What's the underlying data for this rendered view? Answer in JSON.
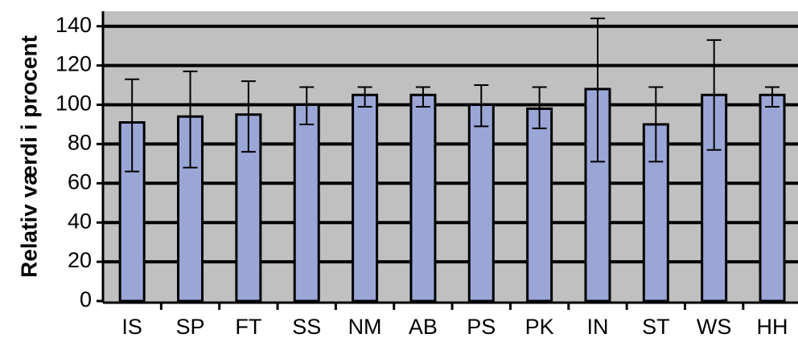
{
  "chart_data": {
    "type": "bar",
    "title": "",
    "xlabel": "",
    "ylabel": "Relativ værdi i procent",
    "ylim": [
      0,
      140
    ],
    "yticks": [
      0,
      20,
      40,
      60,
      80,
      100,
      120,
      140
    ],
    "grid": true,
    "categories": [
      "IS",
      "SP",
      "FT",
      "SS",
      "NM",
      "AB",
      "PS",
      "PK",
      "IN",
      "ST",
      "WS",
      "HH"
    ],
    "values": [
      91,
      94,
      95,
      100,
      105,
      105,
      100,
      98,
      108,
      90,
      105,
      105
    ],
    "error_low": [
      66,
      68,
      76,
      90,
      99,
      99,
      89,
      88,
      71,
      71,
      77,
      99
    ],
    "error_high": [
      113,
      117,
      112,
      109,
      109,
      109,
      110,
      109,
      144,
      109,
      133,
      109
    ],
    "colors": {
      "bar_fill": "#9aa6d6",
      "bar_stroke": "#000000",
      "plot_background": "#c0c0c0",
      "gridline": "#000000",
      "error_bar": "#000000"
    }
  }
}
